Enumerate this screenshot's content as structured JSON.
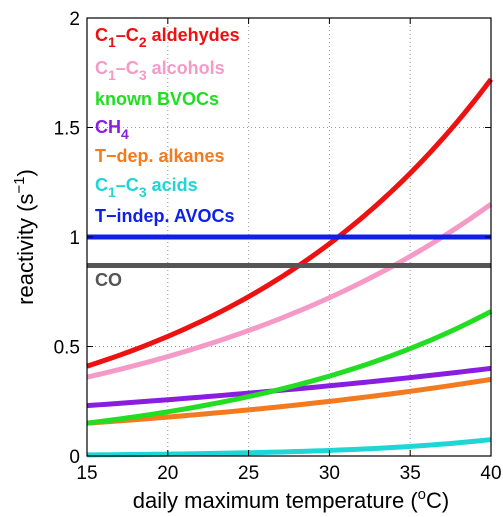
{
  "chart_data": {
    "type": "line",
    "xlabel": "daily maximum temperature (",
    "xlabel_sup": "o",
    "xlabel_tail": "C)",
    "ylabel": "reactivity (s",
    "ylabel_sup": "−1",
    "ylabel_tail": ")",
    "xlim": [
      15,
      40
    ],
    "ylim": [
      0,
      2
    ],
    "x_ticks": [
      15,
      20,
      25,
      30,
      35,
      40
    ],
    "x_tick_labels": [
      "15",
      "20",
      "25",
      "30",
      "35",
      "40"
    ],
    "y_ticks": [
      0,
      0.5,
      1,
      1.5,
      2
    ],
    "y_tick_labels": [
      "0",
      "0.5",
      "1",
      "1.5",
      "2"
    ],
    "grid": "dotted",
    "legend_placement": "top-left",
    "series": [
      {
        "name": "C1–C2 aldehydes",
        "legend": {
          "pre": "C",
          "sub1": "1",
          "mid": "–C",
          "sub2": "2",
          "post": " aldehydes"
        },
        "color": "#ee1111",
        "shape": "exp",
        "y_start": 0.41,
        "y_end": 1.72
      },
      {
        "name": "C1–C3 alcohols",
        "legend": {
          "pre": "C",
          "sub1": "1",
          "mid": "–C",
          "sub2": "3",
          "post": " alcohols"
        },
        "color": "#f59ac6",
        "shape": "exp",
        "y_start": 0.36,
        "y_end": 1.15
      },
      {
        "name": "known BVOCs",
        "legend": {
          "pre": "known BVOCs"
        },
        "color": "#22dd22",
        "shape": "exp",
        "y_start": 0.15,
        "y_end": 0.66
      },
      {
        "name": "CH4",
        "legend": {
          "pre": "CH",
          "sub1": "4"
        },
        "color": "#8a1ee0",
        "shape": "exp",
        "y_start": 0.23,
        "y_end": 0.4
      },
      {
        "name": "T-dep. alkanes",
        "legend": {
          "pre": "T−dep. alkanes"
        },
        "color": "#f47a20",
        "shape": "exp",
        "y_start": 0.15,
        "y_end": 0.35
      },
      {
        "name": "C1–C3 acids",
        "legend": {
          "pre": "C",
          "sub1": "1",
          "mid": "–C",
          "sub2": "3",
          "post": " acids"
        },
        "color": "#1fd6d6",
        "shape": "exp",
        "y_start": 0.005,
        "y_end": 0.075
      },
      {
        "name": "T-indep. AVOCs",
        "legend": {
          "pre": "T−indep. AVOCs"
        },
        "color": "#1020e8",
        "shape": "flat",
        "y_start": 1.0,
        "y_end": 1.0
      },
      {
        "name": "CO",
        "legend": {
          "pre": "CO"
        },
        "color": "#555555",
        "shape": "flat",
        "y_start": 0.87,
        "y_end": 0.87
      }
    ]
  }
}
